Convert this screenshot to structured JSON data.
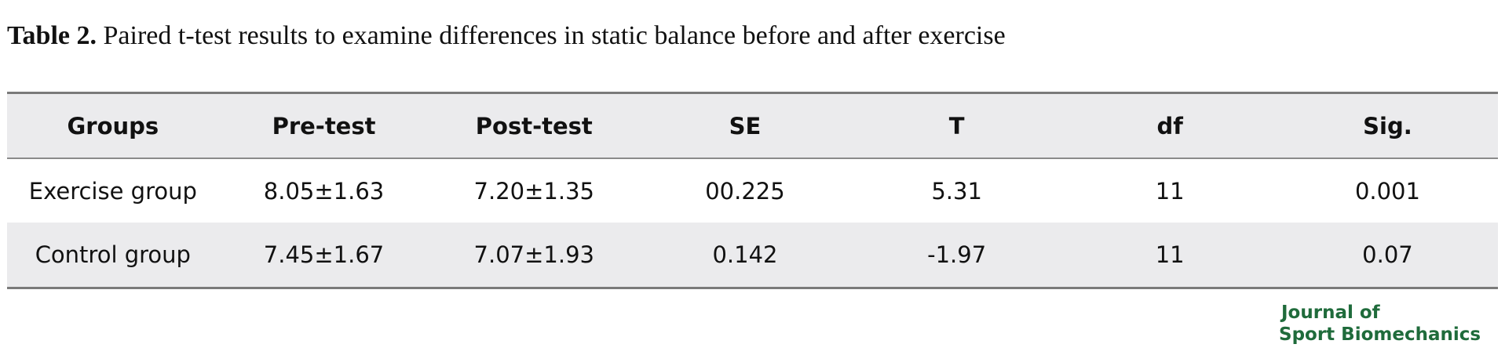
{
  "caption": {
    "label": "Table 2.",
    "text": "Paired t-test results to examine differences in static balance before and after exercise"
  },
  "table": {
    "headers": [
      "Groups",
      "Pre-test",
      "Post-test",
      "SE",
      "T",
      "df",
      "Sig."
    ],
    "rows": [
      [
        "Exercise group",
        "8.05±1.63",
        "7.20±1.35",
        "00.225",
        "5.31",
        "11",
        "0.001"
      ],
      [
        "Control group",
        "7.45±1.67",
        "7.07±1.93",
        "0.142",
        "-1.97",
        "11",
        "0.07"
      ]
    ]
  },
  "logo": {
    "line1": "Journal of",
    "line2": "Sport Biomechanics",
    "color": "#1f6b3b"
  }
}
